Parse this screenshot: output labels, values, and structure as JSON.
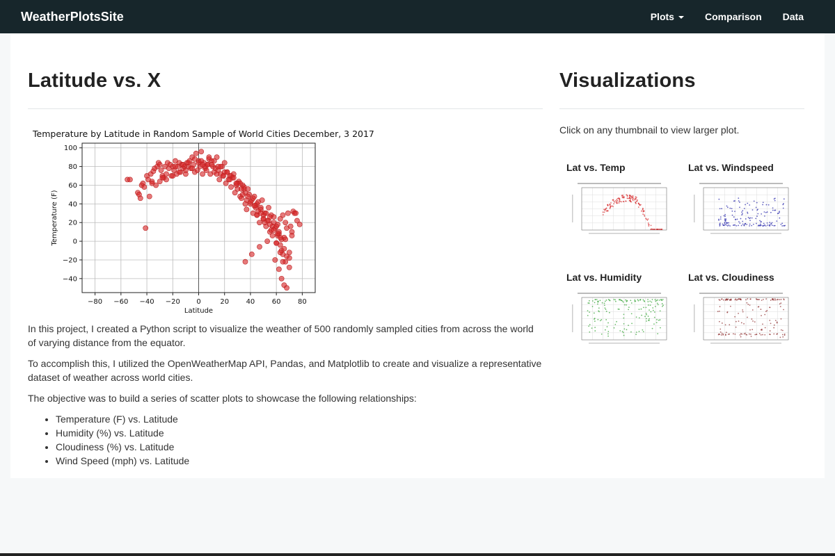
{
  "navbar": {
    "brand": "WeatherPlotsSite",
    "plots_label": "Plots",
    "comparison_label": "Comparison",
    "data_label": "Data"
  },
  "main": {
    "heading": "Latitude vs. X",
    "paragraphs": [
      "In this project, I created a Python script to visualize the weather of 500 randomly sampled cities from across the world of varying distance from the equator.",
      "To accomplish this, I utilized the OpenWeatherMap API, Pandas, and Matplotlib to create and visualize a representative dataset of weather across world cities.",
      "The objective was to build a series of scatter plots to showcase the following relationships:"
    ],
    "relationships": [
      "Temperature (F) vs. Latitude",
      "Humidity (%) vs. Latitude",
      "Cloudiness (%) vs. Latitude",
      "Wind Speed (mph) vs. Latitude"
    ]
  },
  "sidebar": {
    "heading": "Visualizations",
    "hint": "Click on any thumbnail to view larger plot.",
    "thumbnails": [
      {
        "label": "Lat vs. Temp",
        "color": "#d62728"
      },
      {
        "label": "Lat vs. Windspeed",
        "color": "#1f1fa8"
      },
      {
        "label": "Lat vs. Humidity",
        "color": "#2ca02c"
      },
      {
        "label": "Lat vs. Cloudiness",
        "color": "#8c2a2a"
      }
    ]
  },
  "chart_data": {
    "type": "scatter",
    "title": "Temperature by Latitude in Random Sample of World Cities December, 3 2017",
    "xlabel": "Latitude",
    "ylabel": "Temperature (F)",
    "xlim": [
      -90,
      90
    ],
    "ylim": [
      -55,
      105
    ],
    "xticks": [
      -80,
      -60,
      -40,
      -20,
      0,
      20,
      40,
      60,
      80
    ],
    "yticks": [
      -40,
      -20,
      0,
      20,
      40,
      60,
      80,
      100
    ],
    "grid": true,
    "color": "#d62728",
    "series": [
      {
        "x": [
          -55,
          -53,
          -47,
          -46,
          -45,
          -44,
          -43,
          -42,
          -40,
          -39,
          -38,
          -37,
          -36,
          -35,
          -34,
          -33,
          -32,
          -31,
          -30,
          -29,
          -28,
          -27,
          -26,
          -25,
          -24,
          -23,
          -22,
          -21,
          -20,
          -19,
          -18,
          -17,
          -16,
          -15,
          -14,
          -13,
          -12,
          -11,
          -10,
          -9,
          -8,
          -7,
          -6,
          -5,
          -4,
          -3,
          -2,
          -1,
          0,
          1,
          2,
          3,
          4,
          5,
          6,
          7,
          8,
          9,
          10,
          11,
          12,
          13,
          14,
          15,
          16,
          17,
          18,
          19,
          20,
          21,
          22,
          23,
          24,
          25,
          26,
          27,
          28,
          29,
          30,
          31,
          32,
          33,
          34,
          35,
          36,
          37,
          38,
          39,
          40,
          41,
          42,
          43,
          44,
          45,
          46,
          47,
          48,
          49,
          50,
          51,
          52,
          53,
          54,
          55,
          56,
          57,
          58,
          59,
          60,
          61,
          62,
          63,
          64,
          65,
          66,
          67,
          68,
          69,
          70,
          71,
          72,
          73,
          74,
          75,
          76,
          78,
          -41,
          -36,
          -30,
          -25,
          -20,
          -15,
          -10,
          -5,
          0,
          5,
          10,
          15,
          20,
          25,
          30,
          35,
          38,
          42,
          45,
          48,
          52,
          55,
          58,
          60,
          62,
          64,
          66,
          68,
          70,
          34,
          40,
          44,
          46,
          50,
          54,
          57,
          61,
          63,
          65,
          67,
          36,
          41,
          47,
          53,
          59,
          62,
          64,
          66,
          68,
          70,
          72,
          36,
          45,
          51,
          56,
          60,
          63,
          65,
          67,
          -8,
          -3,
          3,
          8,
          12,
          17,
          22,
          27,
          32,
          -28,
          -18,
          -12,
          2,
          7,
          14,
          19,
          24,
          29,
          33,
          37,
          43,
          48,
          50,
          55,
          58,
          61,
          63
        ],
        "y": [
          66,
          66,
          52,
          50,
          46,
          60,
          62,
          58,
          70,
          66,
          48,
          72,
          64,
          75,
          78,
          60,
          80,
          84,
          82,
          76,
          70,
          68,
          80,
          72,
          84,
          78,
          82,
          70,
          80,
          76,
          86,
          72,
          80,
          84,
          74,
          82,
          78,
          80,
          76,
          84,
          80,
          86,
          78,
          90,
          82,
          74,
          94,
          76,
          86,
          80,
          96,
          72,
          84,
          78,
          76,
          82,
          88,
          72,
          86,
          80,
          74,
          78,
          90,
          76,
          66,
          72,
          80,
          70,
          84,
          62,
          74,
          66,
          70,
          58,
          68,
          72,
          52,
          60,
          56,
          64,
          48,
          46,
          60,
          58,
          52,
          44,
          56,
          50,
          40,
          44,
          30,
          48,
          36,
          28,
          42,
          20,
          36,
          44,
          24,
          30,
          16,
          22,
          36,
          10,
          28,
          6,
          26,
          14,
          -2,
          18,
          8,
          24,
          -10,
          28,
          4,
          20,
          14,
          30,
          -18,
          16,
          10,
          32,
          30,
          30,
          22,
          18,
          14,
          62,
          64,
          66,
          70,
          74,
          72,
          78,
          84,
          80,
          82,
          80,
          74,
          70,
          62,
          56,
          48,
          46,
          40,
          34,
          30,
          26,
          20,
          16,
          10,
          2,
          -8,
          -16,
          -28,
          50,
          42,
          38,
          32,
          28,
          22,
          16,
          6,
          -4,
          -14,
          -22,
          -22,
          -14,
          -6,
          0,
          -20,
          -30,
          -40,
          -47,
          -50,
          -12,
          6,
          40,
          28,
          20,
          12,
          -2,
          -12,
          -22,
          2,
          84,
          88,
          82,
          90,
          86,
          80,
          74,
          68,
          62,
          68,
          80,
          82,
          86,
          82,
          72,
          70,
          66,
          62,
          56,
          34,
          38,
          30,
          24,
          18,
          12,
          8,
          4
        ]
      }
    ]
  }
}
